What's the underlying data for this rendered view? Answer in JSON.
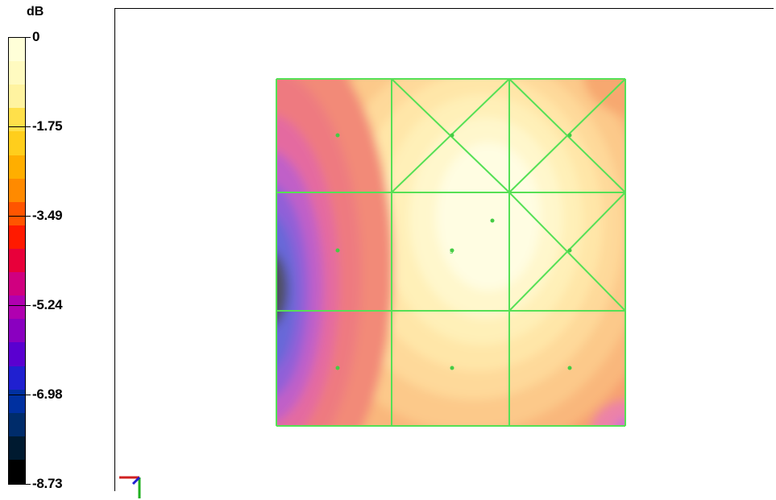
{
  "legend": {
    "unit": "dB",
    "labels": [
      "0",
      "-1.75",
      "-3.49",
      "-5.24",
      "-6.98",
      "-8.73"
    ],
    "colors": [
      "#ffffd8",
      "#fffac0",
      "#fff3a0",
      "#ffe04a",
      "#ffce1c",
      "#ffae00",
      "#ff8a00",
      "#ff5500",
      "#ff1a00",
      "#e8003a",
      "#d00080",
      "#b000b0",
      "#8a00c0",
      "#5a00d0",
      "#2020d0",
      "#0030a0",
      "#002c6a",
      "#001a30",
      "#000000"
    ]
  },
  "plot": {
    "grid_color": "#55e055",
    "point_color": "#44cc44",
    "center_marker": "5"
  },
  "triad": {
    "axes": [
      "x",
      "y",
      "z"
    ],
    "colors": {
      "x": "#d02020",
      "y": "#20b020",
      "z": "#2020d0"
    }
  }
}
